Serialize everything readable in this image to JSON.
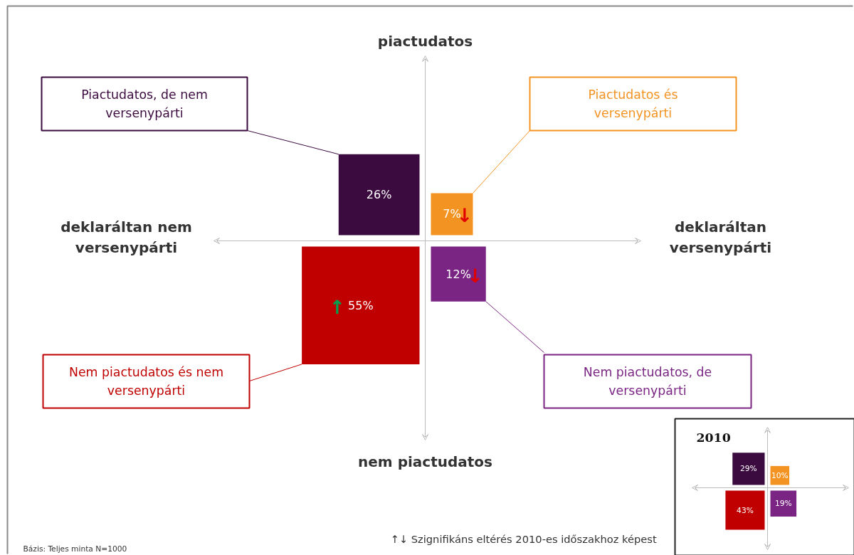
{
  "chart_data": [
    {
      "type": "other",
      "categories": [
        "Piactudatos, de nem versenypárti",
        "Piactudatos és versenypárti",
        "Nem piactudatos és nem versenypárti",
        "Nem piactudatos, de versenypárti"
      ],
      "values": [
        26,
        7,
        55,
        12
      ],
      "colors": [
        "#3b0a3f",
        "#f39322",
        "#c00000",
        "#7a2583"
      ],
      "value_labels": [
        "26%",
        "7%",
        "55%",
        "12%"
      ],
      "annotations": [
        "piactudatos",
        "nem piactudatos",
        "deklaráltan nem versenypárti",
        "deklaráltan versenypárti",
        "↑↓ Szignifikáns eltérés 2010-es időszakhoz képest",
        "Bázis: Teljes minta N=1000",
        {
          "text": "↓",
          "x": "Piactudatos és versenypárti"
        },
        {
          "text": "↑",
          "x": "Nem piactudatos és nem versenypárti"
        },
        {
          "text": "↓",
          "x": "Nem piactudatos, de versenypárti"
        }
      ]
    },
    {
      "type": "other",
      "title": "2010",
      "categories": [
        null,
        null,
        null,
        null
      ],
      "values": [
        29,
        10,
        43,
        19
      ],
      "colors": [
        "#3b0a3f",
        "#f39322",
        "#c00000",
        "#7a2583"
      ],
      "value_labels": [
        "29%",
        "10%",
        "43%",
        "19%"
      ]
    }
  ]
}
